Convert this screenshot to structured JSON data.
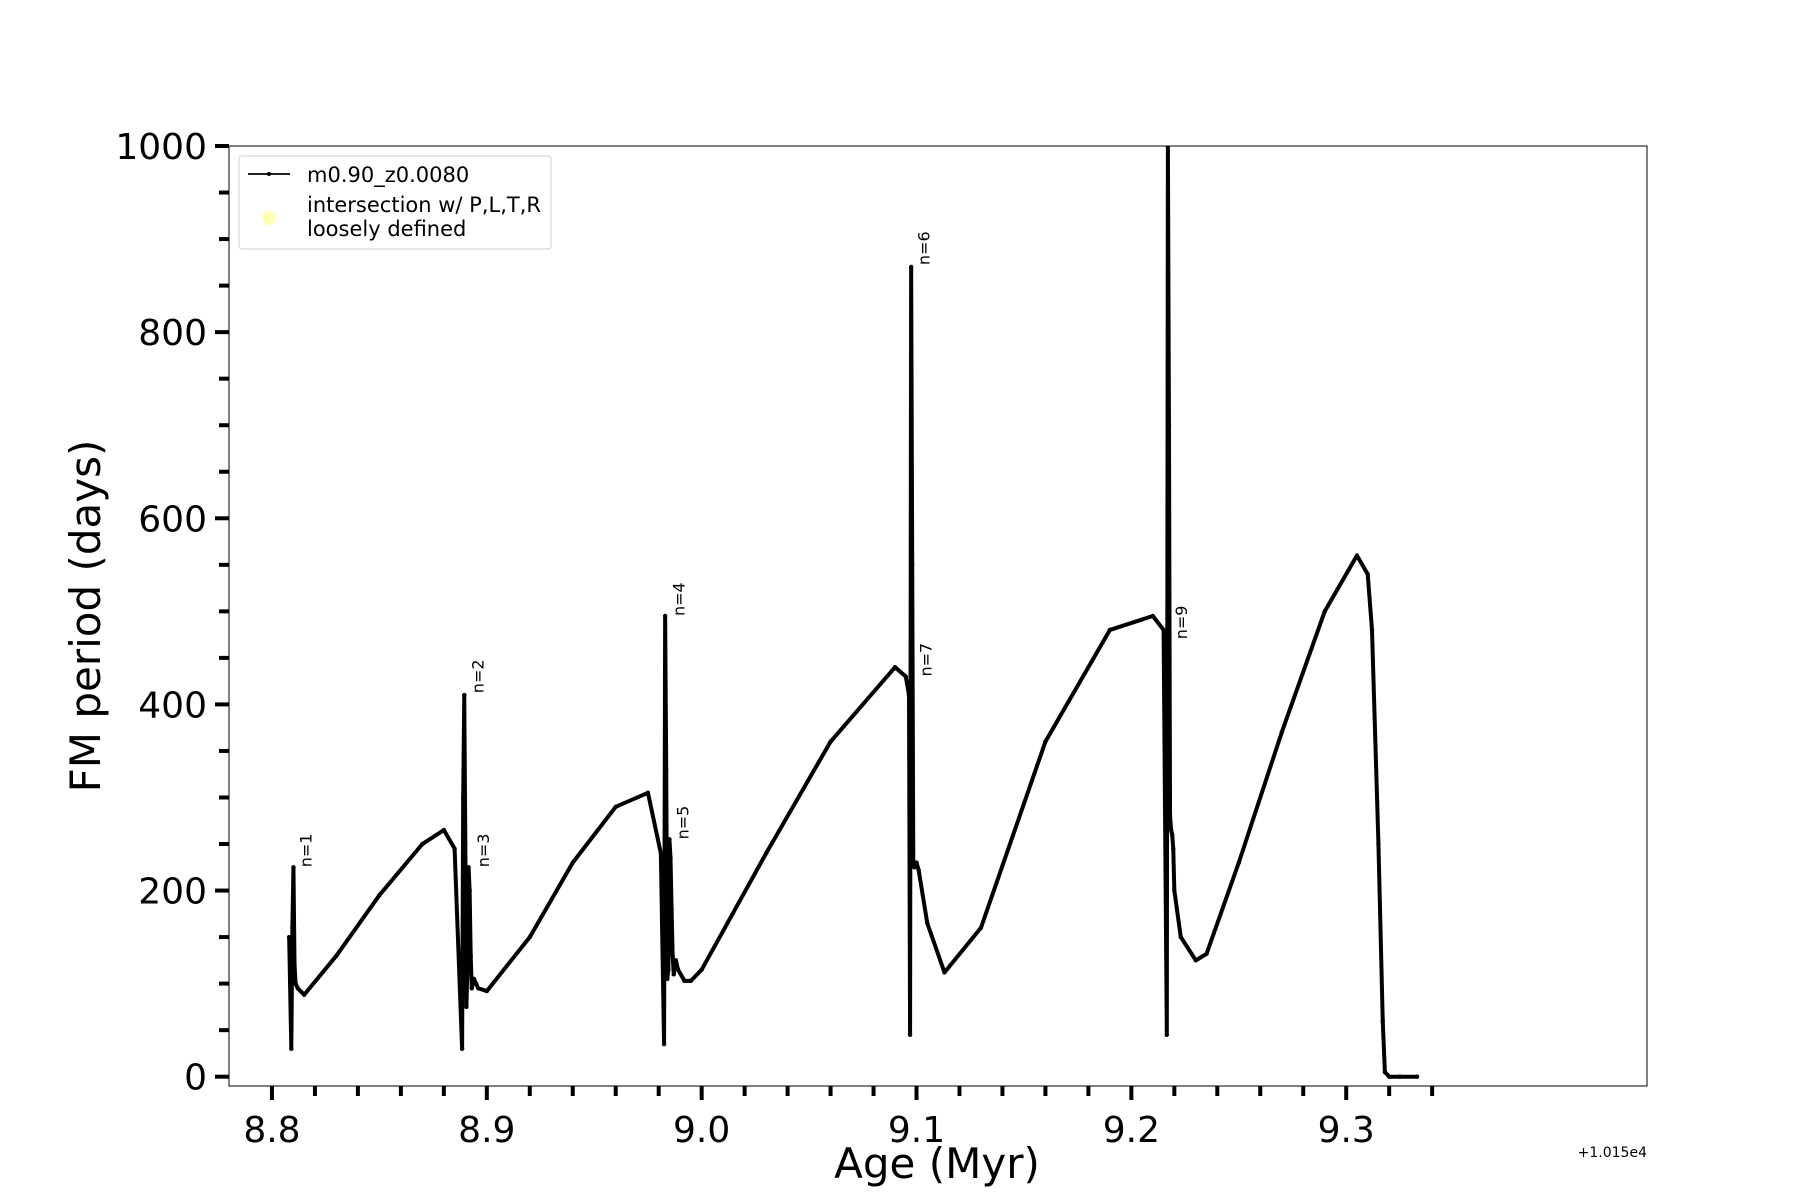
{
  "chart_data": {
    "type": "line",
    "xlabel": "Age (Myr)",
    "ylabel": "FM period (days)",
    "x_offset_label": "+1.015e4",
    "xlim": [
      10158.78,
      10159.44
    ],
    "ylim": [
      -10,
      1000
    ],
    "x_ticks": [
      10158.8,
      10158.9,
      10159.0,
      10159.1,
      10159.2,
      10159.3
    ],
    "x_tick_labels": [
      "8.8",
      "8.9",
      "9.0",
      "9.1",
      "9.2",
      "9.3"
    ],
    "y_ticks": [
      0,
      200,
      400,
      600,
      800,
      1000
    ],
    "y_tick_labels": [
      "0",
      "200",
      "400",
      "600",
      "800",
      "1000"
    ],
    "legend": {
      "placement": "top-left",
      "entries": [
        {
          "label": "m0.90_z0.0080",
          "marker": "line"
        },
        {
          "label": "intersection w/ P,L,T,R\nloosely defined",
          "marker": "circle",
          "color": "#ffffb3"
        }
      ]
    },
    "line_color": "#000000",
    "series": [
      {
        "name": "m0.90_z0.0080",
        "x": [
          10158.808,
          10158.809,
          10158.8095,
          10158.81,
          10158.8105,
          10158.811,
          10158.812,
          10158.815,
          10158.83,
          10158.85,
          10158.87,
          10158.88,
          10158.885,
          10158.8885,
          10158.889,
          10158.8895,
          10158.89,
          10158.8905,
          10158.891,
          10158.8915,
          10158.892,
          10158.8925,
          10158.893,
          10158.894,
          10158.895,
          10158.896,
          10158.9,
          10158.92,
          10158.94,
          10158.96,
          10158.975,
          10158.981,
          10158.9825,
          10158.983,
          10158.9835,
          10158.984,
          10158.9845,
          10158.985,
          10158.9855,
          10158.986,
          10158.9865,
          10158.987,
          10158.988,
          10158.989,
          10158.992,
          10158.995,
          10159.0,
          10159.03,
          10159.06,
          10159.09,
          10159.095,
          10159.0965,
          10159.097,
          10159.0975,
          10159.098,
          10159.0985,
          10159.099,
          10159.1,
          10159.101,
          10159.105,
          10159.113,
          10159.13,
          10159.16,
          10159.19,
          10159.21,
          10159.215,
          10159.2165,
          10159.217,
          10159.2175,
          10159.218,
          10159.2185,
          10159.219,
          10159.2195,
          10159.22,
          10159.223,
          10159.23,
          10159.235,
          10159.25,
          10159.27,
          10159.29,
          10159.305,
          10159.31,
          10159.312,
          10159.315,
          10159.317,
          10159.318,
          10159.32,
          10159.325,
          10159.333
        ],
        "y": [
          150,
          30,
          160,
          225,
          120,
          100,
          95,
          88,
          130,
          195,
          250,
          265,
          245,
          30,
          300,
          410,
          250,
          75,
          120,
          225,
          200,
          130,
          95,
          105,
          100,
          95,
          92,
          150,
          230,
          290,
          305,
          240,
          35,
          495,
          330,
          105,
          115,
          255,
          235,
          180,
          130,
          110,
          125,
          115,
          103,
          103,
          115,
          240,
          360,
          440,
          430,
          410,
          45,
          870,
          550,
          230,
          225,
          230,
          222,
          165,
          112,
          160,
          360,
          480,
          495,
          480,
          45,
          1000,
          700,
          280,
          265,
          260,
          245,
          200,
          150,
          125,
          132,
          230,
          370,
          500,
          560,
          540,
          480,
          250,
          60,
          5,
          0,
          0,
          0
        ]
      }
    ],
    "annotations": [
      {
        "text": "n=1",
        "x": 10158.8115,
        "y": 225
      },
      {
        "text": "n=2",
        "x": 10158.8915,
        "y": 412
      },
      {
        "text": "n=3",
        "x": 10158.894,
        "y": 225
      },
      {
        "text": "n=4",
        "x": 10158.985,
        "y": 495
      },
      {
        "text": "n=5",
        "x": 10158.987,
        "y": 255
      },
      {
        "text": "n=6",
        "x": 10159.099,
        "y": 872
      },
      {
        "text": "n=7",
        "x": 10159.1,
        "y": 430
      },
      {
        "text": "n=9",
        "x": 10159.219,
        "y": 470
      }
    ]
  }
}
